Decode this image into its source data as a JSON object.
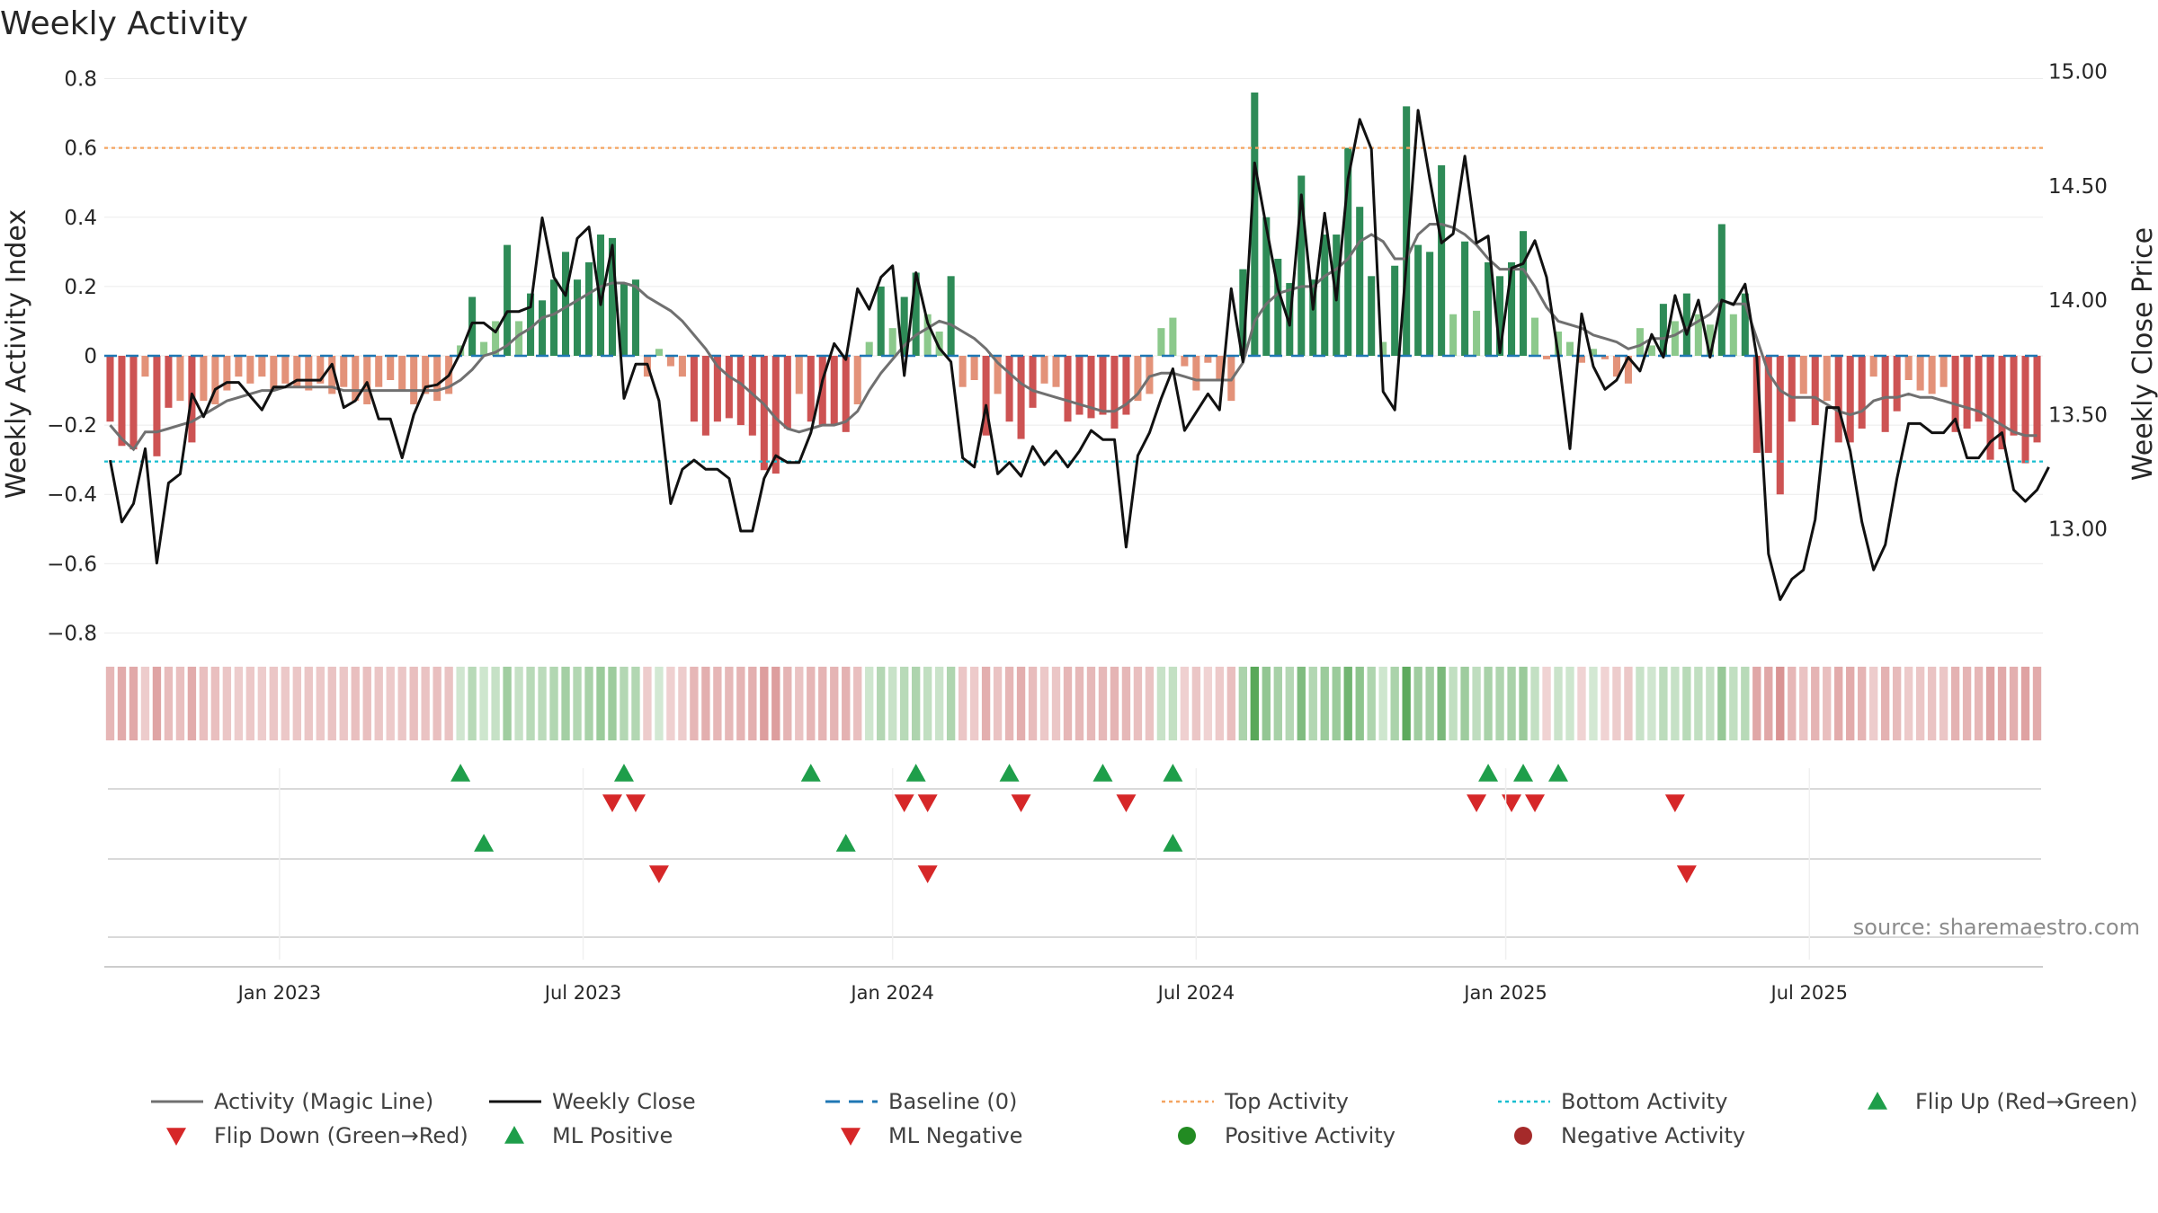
{
  "chart_data": {
    "type": "bar",
    "title": "Weekly Activity",
    "ylabel": "Weekly Activity Index",
    "y2label": "Weekly Close Price",
    "source": "source: sharemaestro.com",
    "ylim": [
      -0.9,
      0.8
    ],
    "yticks": [
      0.8,
      0.6,
      0.4,
      0.2,
      0,
      -0.2,
      -0.4,
      -0.6,
      -0.8
    ],
    "ytick_labels": [
      "0.8",
      "0.6",
      "0.4",
      "0.2",
      "0",
      "−0.2",
      "−0.4",
      "−0.6",
      "−0.8"
    ],
    "y2lim": [
      12.45,
      15.05
    ],
    "y2ticks": [
      15.0,
      14.5,
      14.0,
      13.5,
      13.0
    ],
    "y2tick_labels": [
      "15.00",
      "14.50",
      "14.00",
      "13.50",
      "13.00"
    ],
    "xtick_labels": [
      {
        "label": "Jan 2023",
        "week": 15
      },
      {
        "label": "Jul 2023",
        "week": 41
      },
      {
        "label": "Jan 2024",
        "week": 67.5
      },
      {
        "label": "Jul 2024",
        "week": 93.5
      },
      {
        "label": "Jan 2025",
        "week": 120
      },
      {
        "label": "Jul 2025",
        "week": 146
      }
    ],
    "activity": [
      -0.19,
      -0.26,
      -0.27,
      -0.06,
      -0.29,
      -0.15,
      -0.13,
      -0.25,
      -0.13,
      -0.14,
      -0.1,
      -0.06,
      -0.08,
      -0.06,
      -0.1,
      -0.08,
      -0.09,
      -0.1,
      -0.08,
      -0.11,
      -0.09,
      -0.13,
      -0.14,
      -0.09,
      -0.07,
      -0.1,
      -0.14,
      -0.11,
      -0.13,
      -0.11,
      0.03,
      0.17,
      0.04,
      0.1,
      0.32,
      0.1,
      0.18,
      0.16,
      0.22,
      0.3,
      0.22,
      0.27,
      0.35,
      0.34,
      0.21,
      0.22,
      -0.06,
      0.02,
      -0.03,
      -0.06,
      -0.19,
      -0.23,
      -0.19,
      -0.18,
      -0.2,
      -0.23,
      -0.33,
      -0.34,
      -0.21,
      -0.11,
      -0.19,
      -0.2,
      -0.2,
      -0.22,
      -0.14,
      0.04,
      0.2,
      0.08,
      0.17,
      0.24,
      0.12,
      0.07,
      0.23,
      -0.09,
      -0.07,
      -0.23,
      -0.11,
      -0.19,
      -0.24,
      -0.15,
      -0.08,
      -0.09,
      -0.19,
      -0.17,
      -0.18,
      -0.17,
      -0.21,
      -0.17,
      -0.13,
      -0.11,
      0.08,
      0.11,
      -0.03,
      -0.1,
      -0.02,
      -0.07,
      -0.13,
      0.25,
      0.76,
      0.4,
      0.28,
      0.21,
      0.52,
      0.22,
      0.35,
      0.35,
      0.6,
      0.43,
      0.23,
      0.04,
      0.26,
      0.72,
      0.32,
      0.3,
      0.55,
      0.12,
      0.33,
      0.13,
      0.27,
      0.23,
      0.27,
      0.36,
      0.11,
      -0.01,
      0.07,
      0.04,
      -0.02,
      0.02,
      -0.01,
      -0.06,
      -0.08,
      0.08,
      0.03,
      0.15,
      0.1,
      0.18,
      0.12,
      0.09,
      0.38,
      0.12,
      0.18,
      -0.28,
      -0.28,
      -0.4,
      -0.19,
      -0.11,
      -0.2,
      -0.13,
      -0.25,
      -0.25,
      -0.21,
      -0.06,
      -0.22,
      -0.16,
      -0.07,
      -0.1,
      -0.11,
      -0.09,
      -0.22,
      -0.21,
      -0.19,
      -0.3,
      -0.27,
      -0.23,
      -0.31,
      -0.25
    ],
    "magic_line": [
      -0.2,
      -0.24,
      -0.27,
      -0.22,
      -0.22,
      -0.21,
      -0.2,
      -0.19,
      -0.17,
      -0.15,
      -0.13,
      -0.12,
      -0.11,
      -0.1,
      -0.1,
      -0.09,
      -0.09,
      -0.09,
      -0.09,
      -0.09,
      -0.1,
      -0.1,
      -0.1,
      -0.1,
      -0.1,
      -0.1,
      -0.1,
      -0.1,
      -0.1,
      -0.09,
      -0.07,
      -0.04,
      0,
      0.01,
      0.03,
      0.06,
      0.08,
      0.11,
      0.12,
      0.14,
      0.16,
      0.18,
      0.2,
      0.21,
      0.21,
      0.2,
      0.17,
      0.15,
      0.13,
      0.1,
      0.06,
      0.02,
      -0.03,
      -0.06,
      -0.08,
      -0.11,
      -0.14,
      -0.18,
      -0.21,
      -0.22,
      -0.21,
      -0.2,
      -0.2,
      -0.19,
      -0.16,
      -0.1,
      -0.05,
      -0.01,
      0.03,
      0.06,
      0.08,
      0.1,
      0.09,
      0.07,
      0.05,
      0.02,
      -0.02,
      -0.05,
      -0.08,
      -0.1,
      -0.11,
      -0.12,
      -0.13,
      -0.14,
      -0.15,
      -0.16,
      -0.16,
      -0.14,
      -0.11,
      -0.06,
      -0.05,
      -0.05,
      -0.06,
      -0.07,
      -0.07,
      -0.07,
      -0.07,
      -0.02,
      0.1,
      0.15,
      0.18,
      0.19,
      0.2,
      0.2,
      0.23,
      0.25,
      0.28,
      0.33,
      0.35,
      0.33,
      0.28,
      0.28,
      0.35,
      0.38,
      0.38,
      0.37,
      0.35,
      0.32,
      0.28,
      0.25,
      0.25,
      0.25,
      0.2,
      0.14,
      0.1,
      0.09,
      0.08,
      0.06,
      0.05,
      0.04,
      0.02,
      0.03,
      0.05,
      0.05,
      0.06,
      0.08,
      0.1,
      0.12,
      0.16,
      0.15,
      0.15,
      0.05,
      -0.05,
      -0.1,
      -0.12,
      -0.12,
      -0.12,
      -0.14,
      -0.16,
      -0.17,
      -0.16,
      -0.13,
      -0.12,
      -0.12,
      -0.11,
      -0.12,
      -0.12,
      -0.13,
      -0.14,
      -0.15,
      -0.16,
      -0.18,
      -0.2,
      -0.22,
      -0.23,
      -0.23
    ],
    "close": [
      13.3,
      13.03,
      13.11,
      13.35,
      12.85,
      13.2,
      13.24,
      13.59,
      13.49,
      13.61,
      13.64,
      13.64,
      13.58,
      13.52,
      13.62,
      13.62,
      13.65,
      13.65,
      13.65,
      13.72,
      13.53,
      13.56,
      13.64,
      13.48,
      13.48,
      13.31,
      13.5,
      13.62,
      13.63,
      13.67,
      13.77,
      13.9,
      13.9,
      13.86,
      13.95,
      13.95,
      13.97,
      14.36,
      14.1,
      14.02,
      14.27,
      14.32,
      13.98,
      14.24,
      13.57,
      13.72,
      13.72,
      13.56,
      13.11,
      13.26,
      13.3,
      13.26,
      13.26,
      13.22,
      12.99,
      12.99,
      13.22,
      13.32,
      13.29,
      13.29,
      13.42,
      13.65,
      13.81,
      13.74,
      14.05,
      13.96,
      14.1,
      14.15,
      13.67,
      14.12,
      13.9,
      13.79,
      13.73,
      13.31,
      13.27,
      13.54,
      13.24,
      13.29,
      13.23,
      13.36,
      13.28,
      13.34,
      13.27,
      13.34,
      13.43,
      13.39,
      13.39,
      12.92,
      13.32,
      13.42,
      13.57,
      13.7,
      13.43,
      13.51,
      13.59,
      13.52,
      14.05,
      13.73,
      14.6,
      14.32,
      14.05,
      13.89,
      14.46,
      13.96,
      14.38,
      14.0,
      14.53,
      14.79,
      14.66,
      13.6,
      13.52,
      14.17,
      14.83,
      14.53,
      14.25,
      14.29,
      14.63,
      14.25,
      14.28,
      13.77,
      14.14,
      14.16,
      14.26,
      14.1,
      13.76,
      13.35,
      13.94,
      13.71,
      13.61,
      13.65,
      13.75,
      13.69,
      13.85,
      13.75,
      14.02,
      13.85,
      14.0,
      13.75,
      14.0,
      13.98,
      14.07,
      13.75,
      12.89,
      12.69,
      12.78,
      12.82,
      13.04,
      13.53,
      13.53,
      13.34,
      13.03,
      12.82,
      12.93,
      13.22,
      13.46,
      13.46,
      13.42,
      13.42,
      13.48,
      13.31,
      13.31,
      13.38,
      13.42,
      13.17,
      13.12,
      13.17,
      13.27
    ],
    "baseline": 0,
    "top_activity": 0.6,
    "bottom_activity": -0.305,
    "flip_up_weeks": [
      30,
      44,
      60,
      69,
      77,
      85,
      91,
      118,
      121,
      124
    ],
    "flip_down_weeks": [
      43,
      45,
      68,
      70,
      78,
      87,
      117,
      120,
      122,
      134
    ],
    "ml_positive_weeks": [
      32,
      63,
      91
    ],
    "ml_negative_weeks": [
      47,
      70,
      135
    ],
    "colors": {
      "green_strong": "#2e8b57",
      "green_light": "#8cc98c",
      "red_strong": "#cd5353",
      "red_light": "#e39279",
      "magic_line": "#707070",
      "close_line": "#111111",
      "baseline": "#1f77b4",
      "top": "#f4a460",
      "bottom": "#17becf",
      "marker_up": "#1e9e4a",
      "marker_down": "#d62728",
      "pos_dot": "#228b22",
      "neg_dot": "#a52a2a"
    },
    "legend": [
      {
        "label": "Activity (Magic Line)",
        "kind": "line",
        "key": "magic"
      },
      {
        "label": "Weekly Close",
        "kind": "line",
        "key": "close"
      },
      {
        "label": "Baseline (0)",
        "kind": "dash",
        "key": "baseline"
      },
      {
        "label": "Top Activity",
        "kind": "dot-line",
        "key": "top"
      },
      {
        "label": "Bottom Activity",
        "kind": "dot-line",
        "key": "bottom"
      },
      {
        "label": "Flip Up (Red→Green)",
        "kind": "tri-up",
        "key": "flipup"
      },
      {
        "label": "Flip Down (Green→Red)",
        "kind": "tri-down",
        "key": "flipdown"
      },
      {
        "label": "ML Positive",
        "kind": "tri-up",
        "key": "mlpos"
      },
      {
        "label": "ML Negative",
        "kind": "tri-down",
        "key": "mlneg"
      },
      {
        "label": "Positive Activity",
        "kind": "circle",
        "key": "posdot"
      },
      {
        "label": "Negative Activity",
        "kind": "circle",
        "key": "negdot"
      }
    ]
  }
}
